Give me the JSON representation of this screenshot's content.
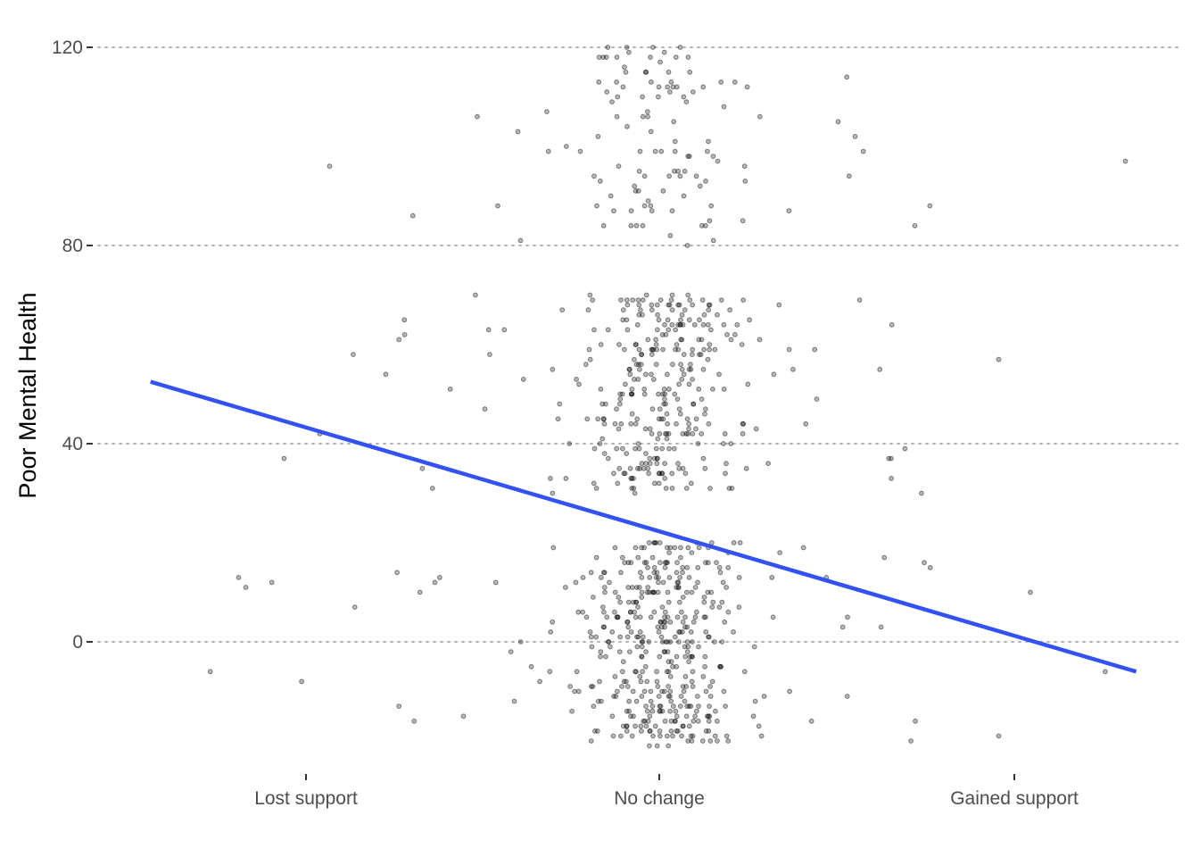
{
  "chart_data": {
    "type": "scatter",
    "title": "",
    "xlabel": "",
    "ylabel": "Poor Mental Health",
    "categories": [
      "Lost support",
      "No change",
      "Gained support"
    ],
    "y_ticks": [
      0,
      40,
      80,
      120
    ],
    "ylim": [
      -25,
      123
    ],
    "grid": "horizontal dotted",
    "jitter": {
      "n_points": 900,
      "seed": 7
    },
    "colors": {
      "points": "#000000",
      "fit_line": "#3252f5",
      "grid": "#b3b3b3",
      "tick_text": "#4d4d4d"
    },
    "fit_line": {
      "x_start": -0.44,
      "y_start": 52.5,
      "x_end": 2.35,
      "y_end": -6
    }
  }
}
